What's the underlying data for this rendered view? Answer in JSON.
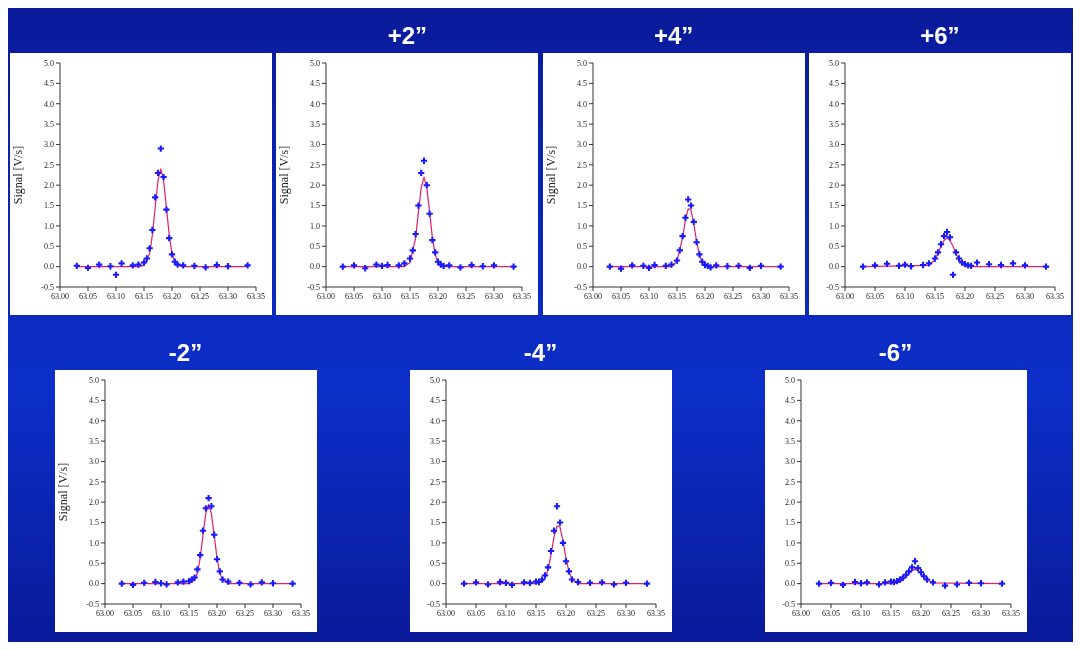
{
  "chart_data": [
    {
      "type": "scatter",
      "ylabel": "Signal [V/s]",
      "x": [
        63.03,
        63.05,
        63.07,
        63.09,
        63.1,
        63.11,
        63.13,
        63.14,
        63.15,
        63.155,
        63.16,
        63.165,
        63.17,
        63.175,
        63.18,
        63.185,
        63.19,
        63.195,
        63.2,
        63.205,
        63.21,
        63.22,
        63.24,
        63.26,
        63.28,
        63.3,
        63.335
      ],
      "xlim": [
        63.0,
        63.35
      ],
      "xticks": [
        {
          "value": 63.0,
          "label": "63.00"
        },
        {
          "value": 63.05,
          "label": "63.05"
        },
        {
          "value": 63.1,
          "label": "63.10"
        },
        {
          "value": 63.15,
          "label": "63.15"
        },
        {
          "value": 63.2,
          "label": "63.20"
        },
        {
          "value": 63.25,
          "label": "63.25"
        },
        {
          "value": 63.3,
          "label": "63.30"
        },
        {
          "value": 63.35,
          "label": "63.35"
        }
      ],
      "ylim": [
        -0.5,
        5.0
      ],
      "yticks": [
        {
          "value": -0.5,
          "label": "-0.5"
        },
        {
          "value": 0,
          "label": "0.0"
        },
        {
          "value": 0.5,
          "label": "0.5"
        },
        {
          "value": 1,
          "label": "1.0"
        },
        {
          "value": 1.5,
          "label": "1.5"
        },
        {
          "value": 2,
          "label": "2.0"
        },
        {
          "value": 2.5,
          "label": "2.5"
        },
        {
          "value": 3,
          "label": "3.0"
        },
        {
          "value": 3.5,
          "label": "3.5"
        },
        {
          "value": 4,
          "label": "4.0"
        },
        {
          "value": 4.5,
          "label": "4.5"
        },
        {
          "value": 5,
          "label": "5.0"
        }
      ],
      "marker": "cross",
      "line_style": "solid",
      "series": [
        {
          "color": "#1a1aff",
          "values": [
            0.02,
            -0.03,
            0.05,
            0.01,
            -0.2,
            0.08,
            0.03,
            0.05,
            0.1,
            0.2,
            0.45,
            0.9,
            1.7,
            2.3,
            2.9,
            2.2,
            1.4,
            0.7,
            0.3,
            0.12,
            0.05,
            0.03,
            0.02,
            -0.02,
            0.04,
            0.01,
            0.03
          ]
        },
        {
          "type": "line",
          "marker": "none",
          "color": "#e0206a",
          "x": [
            63.03,
            63.14,
            63.15,
            63.16,
            63.165,
            63.17,
            63.175,
            63.18,
            63.185,
            63.19,
            63.195,
            63.2,
            63.205,
            63.21,
            63.22,
            63.335
          ],
          "values": [
            0,
            0,
            0.03,
            0.32,
            0.78,
            1.46,
            2.11,
            2.4,
            2.11,
            1.46,
            0.78,
            0.32,
            0.11,
            0.03,
            0,
            0
          ]
        }
      ]
    },
    {
      "type": "scatter",
      "title": "+2”",
      "ylabel": "Signal [V/s]",
      "x": [
        63.03,
        63.05,
        63.07,
        63.09,
        63.1,
        63.11,
        63.13,
        63.14,
        63.15,
        63.155,
        63.16,
        63.165,
        63.17,
        63.175,
        63.18,
        63.185,
        63.19,
        63.195,
        63.2,
        63.205,
        63.21,
        63.22,
        63.24,
        63.26,
        63.28,
        63.3,
        63.335
      ],
      "xlim": [
        63.0,
        63.35
      ],
      "xticks": [
        {
          "value": 63.0,
          "label": "63.00"
        },
        {
          "value": 63.05,
          "label": "63.05"
        },
        {
          "value": 63.1,
          "label": "63.10"
        },
        {
          "value": 63.15,
          "label": "63.15"
        },
        {
          "value": 63.2,
          "label": "63.20"
        },
        {
          "value": 63.25,
          "label": "63.25"
        },
        {
          "value": 63.3,
          "label": "63.30"
        },
        {
          "value": 63.35,
          "label": "63.35"
        }
      ],
      "ylim": [
        -0.5,
        5.0
      ],
      "yticks": [
        {
          "value": -0.5,
          "label": "-0.5"
        },
        {
          "value": 0,
          "label": "0.0"
        },
        {
          "value": 0.5,
          "label": "0.5"
        },
        {
          "value": 1,
          "label": "1.0"
        },
        {
          "value": 1.5,
          "label": "1.5"
        },
        {
          "value": 2,
          "label": "2.0"
        },
        {
          "value": 2.5,
          "label": "2.5"
        },
        {
          "value": 3,
          "label": "3.0"
        },
        {
          "value": 3.5,
          "label": "3.5"
        },
        {
          "value": 4,
          "label": "4.0"
        },
        {
          "value": 4.5,
          "label": "4.5"
        },
        {
          "value": 5,
          "label": "5.0"
        }
      ],
      "marker": "cross",
      "line_style": "solid",
      "series": [
        {
          "color": "#1a1aff",
          "values": [
            0.0,
            0.03,
            -0.04,
            0.05,
            0.02,
            0.04,
            0.03,
            0.08,
            0.2,
            0.4,
            0.8,
            1.5,
            2.3,
            2.6,
            2.0,
            1.3,
            0.65,
            0.35,
            0.12,
            0.05,
            0.02,
            0.03,
            -0.02,
            0.04,
            0.01,
            0.03,
            0.0
          ]
        },
        {
          "type": "line",
          "marker": "none",
          "color": "#e0206a",
          "x": [
            63.03,
            63.14,
            63.15,
            63.16,
            63.165,
            63.17,
            63.175,
            63.18,
            63.185,
            63.19,
            63.195,
            63.2,
            63.205,
            63.21,
            63.22,
            63.335
          ],
          "values": [
            0,
            0,
            0.1,
            0.7,
            1.34,
            1.94,
            2.2,
            1.94,
            1.34,
            0.7,
            0.3,
            0.1,
            0.02,
            0,
            0,
            0
          ]
        }
      ]
    },
    {
      "type": "scatter",
      "title": "+4”",
      "ylabel": "Signal [V/s]",
      "x": [
        63.03,
        63.05,
        63.07,
        63.09,
        63.1,
        63.11,
        63.13,
        63.14,
        63.15,
        63.155,
        63.16,
        63.165,
        63.17,
        63.175,
        63.18,
        63.185,
        63.19,
        63.195,
        63.2,
        63.205,
        63.21,
        63.22,
        63.24,
        63.26,
        63.28,
        63.3,
        63.335
      ],
      "xlim": [
        63.0,
        63.35
      ],
      "xticks": [
        {
          "value": 63.0,
          "label": "63.00"
        },
        {
          "value": 63.05,
          "label": "63.05"
        },
        {
          "value": 63.1,
          "label": "63.10"
        },
        {
          "value": 63.15,
          "label": "63.15"
        },
        {
          "value": 63.2,
          "label": "63.20"
        },
        {
          "value": 63.25,
          "label": "63.25"
        },
        {
          "value": 63.3,
          "label": "63.30"
        },
        {
          "value": 63.35,
          "label": "63.35"
        }
      ],
      "ylim": [
        -0.5,
        5.0
      ],
      "yticks": [
        {
          "value": -0.5,
          "label": "-0.5"
        },
        {
          "value": 0,
          "label": "0.0"
        },
        {
          "value": 0.5,
          "label": "0.5"
        },
        {
          "value": 1,
          "label": "1.0"
        },
        {
          "value": 1.5,
          "label": "1.5"
        },
        {
          "value": 2,
          "label": "2.0"
        },
        {
          "value": 2.5,
          "label": "2.5"
        },
        {
          "value": 3,
          "label": "3.0"
        },
        {
          "value": 3.5,
          "label": "3.5"
        },
        {
          "value": 4,
          "label": "4.0"
        },
        {
          "value": 4.5,
          "label": "4.5"
        },
        {
          "value": 5,
          "label": "5.0"
        }
      ],
      "marker": "cross",
      "line_style": "solid",
      "series": [
        {
          "color": "#1a1aff",
          "values": [
            0.0,
            -0.05,
            0.03,
            0.02,
            -0.03,
            0.04,
            0.02,
            0.05,
            0.15,
            0.4,
            0.75,
            1.2,
            1.65,
            1.5,
            1.1,
            0.6,
            0.3,
            0.12,
            0.04,
            0.02,
            -0.02,
            0.03,
            0.01,
            0.02,
            -0.03,
            0.02,
            0.0
          ]
        },
        {
          "type": "line",
          "marker": "none",
          "color": "#e0206a",
          "x": [
            63.03,
            63.14,
            63.15,
            63.16,
            63.165,
            63.17,
            63.175,
            63.18,
            63.185,
            63.19,
            63.195,
            63.2,
            63.205,
            63.21,
            63.22,
            63.335
          ],
          "values": [
            0,
            0,
            0.13,
            0.71,
            1.14,
            1.42,
            1.39,
            1.05,
            0.62,
            0.29,
            0.1,
            0.03,
            0,
            0,
            0,
            0
          ]
        }
      ]
    },
    {
      "type": "scatter",
      "title": "+6”",
      "x": [
        63.03,
        63.05,
        63.07,
        63.09,
        63.1,
        63.11,
        63.13,
        63.14,
        63.15,
        63.155,
        63.16,
        63.165,
        63.17,
        63.175,
        63.18,
        63.185,
        63.19,
        63.195,
        63.2,
        63.205,
        63.21,
        63.22,
        63.24,
        63.26,
        63.28,
        63.3,
        63.335
      ],
      "xlim": [
        63.0,
        63.35
      ],
      "xticks": [
        {
          "value": 63.0,
          "label": "63.00"
        },
        {
          "value": 63.05,
          "label": "63.05"
        },
        {
          "value": 63.1,
          "label": "63.10"
        },
        {
          "value": 63.15,
          "label": "63.15"
        },
        {
          "value": 63.2,
          "label": "63.20"
        },
        {
          "value": 63.25,
          "label": "63.25"
        },
        {
          "value": 63.3,
          "label": "63.30"
        },
        {
          "value": 63.35,
          "label": "63.35"
        }
      ],
      "ylim": [
        -0.5,
        5.0
      ],
      "yticks": [
        {
          "value": -0.5,
          "label": "-0.5"
        },
        {
          "value": 0,
          "label": "0.0"
        },
        {
          "value": 0.5,
          "label": "0.5"
        },
        {
          "value": 1,
          "label": "1.0"
        },
        {
          "value": 1.5,
          "label": "1.5"
        },
        {
          "value": 2,
          "label": "2.0"
        },
        {
          "value": 2.5,
          "label": "2.5"
        },
        {
          "value": 3,
          "label": "3.0"
        },
        {
          "value": 3.5,
          "label": "3.5"
        },
        {
          "value": 4,
          "label": "4.0"
        },
        {
          "value": 4.5,
          "label": "4.5"
        },
        {
          "value": 5,
          "label": "5.0"
        }
      ],
      "marker": "cross",
      "line_style": "solid",
      "series": [
        {
          "color": "#1a1aff",
          "values": [
            0.0,
            0.03,
            0.07,
            0.02,
            0.05,
            0.01,
            0.04,
            0.08,
            0.2,
            0.35,
            0.55,
            0.75,
            0.85,
            0.72,
            -0.2,
            0.35,
            0.2,
            0.1,
            0.06,
            0.03,
            0.02,
            0.1,
            0.06,
            0.04,
            0.08,
            0.03,
            0.0
          ]
        },
        {
          "type": "line",
          "marker": "none",
          "color": "#e0206a",
          "x": [
            63.03,
            63.14,
            63.15,
            63.16,
            63.165,
            63.17,
            63.175,
            63.18,
            63.185,
            63.19,
            63.195,
            63.2,
            63.205,
            63.21,
            63.22,
            63.335
          ],
          "values": [
            0,
            0.03,
            0.17,
            0.5,
            0.64,
            0.7,
            0.64,
            0.5,
            0.32,
            0.17,
            0.08,
            0.03,
            0.01,
            0,
            0,
            0
          ]
        }
      ]
    },
    {
      "type": "scatter",
      "title": "-2”",
      "ylabel": "Signal [V/s]",
      "x": [
        63.03,
        63.05,
        63.07,
        63.09,
        63.1,
        63.11,
        63.13,
        63.14,
        63.15,
        63.155,
        63.16,
        63.165,
        63.17,
        63.175,
        63.18,
        63.185,
        63.19,
        63.195,
        63.2,
        63.205,
        63.21,
        63.22,
        63.24,
        63.26,
        63.28,
        63.3,
        63.335
      ],
      "xlim": [
        63.0,
        63.35
      ],
      "xticks": [
        {
          "value": 63.0,
          "label": "63.00"
        },
        {
          "value": 63.05,
          "label": "63.05"
        },
        {
          "value": 63.1,
          "label": "63.10"
        },
        {
          "value": 63.15,
          "label": "63.15"
        },
        {
          "value": 63.2,
          "label": "63.20"
        },
        {
          "value": 63.25,
          "label": "63.25"
        },
        {
          "value": 63.3,
          "label": "63.30"
        },
        {
          "value": 63.35,
          "label": "63.35"
        }
      ],
      "ylim": [
        -0.5,
        5.0
      ],
      "yticks": [
        {
          "value": -0.5,
          "label": "-0.5"
        },
        {
          "value": 0,
          "label": "0.0"
        },
        {
          "value": 0.5,
          "label": "0.5"
        },
        {
          "value": 1,
          "label": "1.0"
        },
        {
          "value": 1.5,
          "label": "1.5"
        },
        {
          "value": 2,
          "label": "2.0"
        },
        {
          "value": 2.5,
          "label": "2.5"
        },
        {
          "value": 3,
          "label": "3.0"
        },
        {
          "value": 3.5,
          "label": "3.5"
        },
        {
          "value": 4,
          "label": "4.0"
        },
        {
          "value": 4.5,
          "label": "4.5"
        },
        {
          "value": 5,
          "label": "5.0"
        }
      ],
      "marker": "cross",
      "line_style": "solid",
      "series": [
        {
          "color": "#1a1aff",
          "values": [
            0.0,
            -0.03,
            0.02,
            0.04,
            0.01,
            -0.02,
            0.03,
            0.05,
            0.06,
            0.1,
            0.15,
            0.35,
            0.7,
            1.3,
            1.85,
            2.1,
            1.9,
            1.2,
            0.6,
            0.3,
            0.1,
            0.05,
            0.02,
            -0.02,
            0.03,
            0.01,
            0.0
          ]
        },
        {
          "type": "line",
          "marker": "none",
          "color": "#e0206a",
          "x": [
            63.03,
            63.14,
            63.15,
            63.16,
            63.165,
            63.17,
            63.175,
            63.18,
            63.185,
            63.19,
            63.195,
            63.2,
            63.205,
            63.21,
            63.22,
            63.335
          ],
          "values": [
            0,
            0,
            0,
            0.09,
            0.26,
            0.63,
            1.19,
            1.72,
            1.95,
            1.72,
            1.19,
            0.63,
            0.26,
            0.09,
            0,
            0
          ]
        }
      ]
    },
    {
      "type": "scatter",
      "title": "-4”",
      "x": [
        63.03,
        63.05,
        63.07,
        63.09,
        63.1,
        63.11,
        63.13,
        63.14,
        63.15,
        63.155,
        63.16,
        63.165,
        63.17,
        63.175,
        63.18,
        63.185,
        63.19,
        63.195,
        63.2,
        63.205,
        63.21,
        63.22,
        63.24,
        63.26,
        63.28,
        63.3,
        63.335
      ],
      "xlim": [
        63.0,
        63.35
      ],
      "xticks": [
        {
          "value": 63.0,
          "label": "63.00"
        },
        {
          "value": 63.05,
          "label": "63.05"
        },
        {
          "value": 63.1,
          "label": "63.10"
        },
        {
          "value": 63.15,
          "label": "63.15"
        },
        {
          "value": 63.2,
          "label": "63.20"
        },
        {
          "value": 63.25,
          "label": "63.25"
        },
        {
          "value": 63.3,
          "label": "63.30"
        },
        {
          "value": 63.35,
          "label": "63.35"
        }
      ],
      "ylim": [
        -0.5,
        5.0
      ],
      "yticks": [
        {
          "value": -0.5,
          "label": "-0.5"
        },
        {
          "value": 0,
          "label": "0.0"
        },
        {
          "value": 0.5,
          "label": "0.5"
        },
        {
          "value": 1,
          "label": "1.0"
        },
        {
          "value": 1.5,
          "label": "1.5"
        },
        {
          "value": 2,
          "label": "2.0"
        },
        {
          "value": 2.5,
          "label": "2.5"
        },
        {
          "value": 3,
          "label": "3.0"
        },
        {
          "value": 3.5,
          "label": "3.5"
        },
        {
          "value": 4,
          "label": "4.0"
        },
        {
          "value": 4.5,
          "label": "4.5"
        },
        {
          "value": 5,
          "label": "5.0"
        }
      ],
      "marker": "cross",
      "line_style": "solid",
      "series": [
        {
          "color": "#1a1aff",
          "values": [
            0.0,
            0.03,
            -0.02,
            0.04,
            0.02,
            -0.03,
            0.03,
            0.02,
            0.05,
            0.04,
            0.1,
            0.2,
            0.4,
            0.8,
            1.3,
            1.9,
            1.5,
            1.0,
            0.55,
            0.3,
            0.1,
            0.04,
            0.02,
            0.03,
            -0.02,
            0.02,
            0.0
          ]
        },
        {
          "type": "line",
          "marker": "none",
          "color": "#e0206a",
          "x": [
            63.03,
            63.14,
            63.15,
            63.16,
            63.165,
            63.17,
            63.175,
            63.18,
            63.185,
            63.19,
            63.195,
            63.2,
            63.205,
            63.21,
            63.22,
            63.335
          ],
          "values": [
            0,
            0,
            0,
            0.04,
            0.13,
            0.34,
            0.71,
            1.14,
            1.42,
            1.39,
            1.05,
            0.62,
            0.29,
            0.1,
            0,
            0
          ]
        }
      ]
    },
    {
      "type": "scatter",
      "title": "-6”",
      "x": [
        63.03,
        63.05,
        63.07,
        63.09,
        63.1,
        63.11,
        63.13,
        63.14,
        63.15,
        63.155,
        63.16,
        63.165,
        63.17,
        63.175,
        63.18,
        63.185,
        63.19,
        63.195,
        63.2,
        63.205,
        63.21,
        63.22,
        63.24,
        63.26,
        63.28,
        63.3,
        63.335
      ],
      "xlim": [
        63.0,
        63.35
      ],
      "xticks": [
        {
          "value": 63.0,
          "label": "63.00"
        },
        {
          "value": 63.05,
          "label": "63.05"
        },
        {
          "value": 63.1,
          "label": "63.10"
        },
        {
          "value": 63.15,
          "label": "63.15"
        },
        {
          "value": 63.2,
          "label": "63.20"
        },
        {
          "value": 63.25,
          "label": "63.25"
        },
        {
          "value": 63.3,
          "label": "63.30"
        },
        {
          "value": 63.35,
          "label": "63.35"
        }
      ],
      "ylim": [
        -0.5,
        5.0
      ],
      "yticks": [
        {
          "value": -0.5,
          "label": "-0.5"
        },
        {
          "value": 0,
          "label": "0.0"
        },
        {
          "value": 0.5,
          "label": "0.5"
        },
        {
          "value": 1,
          "label": "1.0"
        },
        {
          "value": 1.5,
          "label": "1.5"
        },
        {
          "value": 2,
          "label": "2.0"
        },
        {
          "value": 2.5,
          "label": "2.5"
        },
        {
          "value": 3,
          "label": "3.0"
        },
        {
          "value": 3.5,
          "label": "3.5"
        },
        {
          "value": 4,
          "label": "4.0"
        },
        {
          "value": 4.5,
          "label": "4.5"
        },
        {
          "value": 5,
          "label": "5.0"
        }
      ],
      "marker": "cross",
      "line_style": "solid",
      "series": [
        {
          "color": "#1a1aff",
          "values": [
            0.0,
            0.02,
            -0.03,
            0.04,
            0.01,
            0.03,
            -0.02,
            0.03,
            0.05,
            0.04,
            0.06,
            0.1,
            0.15,
            0.22,
            0.3,
            0.4,
            0.55,
            0.38,
            0.28,
            0.18,
            0.1,
            0.03,
            -0.05,
            -0.02,
            0.02,
            0.01,
            0.0
          ]
        },
        {
          "type": "line",
          "marker": "none",
          "color": "#e0206a",
          "x": [
            63.03,
            63.14,
            63.15,
            63.16,
            63.165,
            63.17,
            63.175,
            63.18,
            63.185,
            63.19,
            63.195,
            63.2,
            63.205,
            63.21,
            63.22,
            63.335
          ],
          "values": [
            0,
            0,
            0,
            0.02,
            0.04,
            0.09,
            0.16,
            0.25,
            0.32,
            0.35,
            0.32,
            0.25,
            0.16,
            0.09,
            0.02,
            0
          ]
        }
      ]
    }
  ]
}
